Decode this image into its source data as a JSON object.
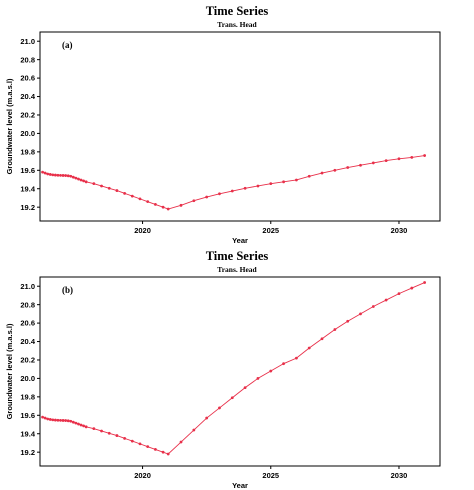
{
  "chart_data": [
    {
      "type": "line",
      "title": "Time Series",
      "subtitle": "Trans. Head",
      "panel_label": "(a)",
      "xlabel": "Year",
      "ylabel": "Groundwater level (m.a.s.l)",
      "xlim": [
        2016.0,
        2031.6
      ],
      "ylim": [
        19.05,
        21.1
      ],
      "xticks": [
        2020,
        2025,
        2030
      ],
      "yticks": [
        19.2,
        19.4,
        19.6,
        19.8,
        20.0,
        20.2,
        20.4,
        20.6,
        20.8,
        21.0
      ],
      "ytick_labels": [
        "19.2",
        "19.4",
        "19.6",
        "19.8",
        "20.0",
        "20.2",
        "20.4",
        "20.6",
        "20.8",
        "21.0"
      ],
      "line_color": "#e8304a",
      "series": [
        {
          "x": [
            2016.1,
            2016.2,
            2016.3,
            2016.4,
            2016.5,
            2016.6,
            2016.7,
            2016.8,
            2016.9,
            2017.0,
            2017.1,
            2017.2,
            2017.3,
            2017.4,
            2017.5,
            2017.6,
            2017.7,
            2017.8,
            2018.1,
            2018.4,
            2018.7,
            2019.0,
            2019.3,
            2019.6,
            2019.9,
            2020.2,
            2020.5,
            2020.8,
            2021.0,
            2021.5,
            2022.0,
            2022.5,
            2023.0,
            2023.5,
            2024.0,
            2024.5,
            2025.0,
            2025.5,
            2026.0,
            2026.5,
            2027.0,
            2027.5,
            2028.0,
            2028.5,
            2029.0,
            2029.5,
            2030.0,
            2030.5,
            2031.0
          ],
          "y": [
            19.58,
            19.57,
            19.56,
            19.555,
            19.55,
            19.548,
            19.546,
            19.545,
            19.544,
            19.543,
            19.54,
            19.535,
            19.525,
            19.515,
            19.505,
            19.495,
            19.485,
            19.475,
            19.455,
            19.43,
            19.405,
            19.38,
            19.35,
            19.32,
            19.29,
            19.26,
            19.23,
            19.2,
            19.18,
            19.22,
            19.27,
            19.31,
            19.345,
            19.375,
            19.405,
            19.43,
            19.455,
            19.475,
            19.495,
            19.535,
            19.57,
            19.6,
            19.63,
            19.655,
            19.68,
            19.705,
            19.725,
            19.74,
            19.76
          ]
        }
      ]
    },
    {
      "type": "line",
      "title": "Time Series",
      "subtitle": "Trans. Head",
      "panel_label": "(b)",
      "xlabel": "Year",
      "ylabel": "Groundwater level (m.a.s.l)",
      "xlim": [
        2016.0,
        2031.6
      ],
      "ylim": [
        19.05,
        21.1
      ],
      "xticks": [
        2020,
        2025,
        2030
      ],
      "yticks": [
        19.2,
        19.4,
        19.6,
        19.8,
        20.0,
        20.2,
        20.4,
        20.6,
        20.8,
        21.0
      ],
      "ytick_labels": [
        "19.2",
        "19.4",
        "19.6",
        "19.8",
        "20.0",
        "20.2",
        "20.4",
        "20.6",
        "20.8",
        "21.0"
      ],
      "line_color": "#e8304a",
      "series": [
        {
          "x": [
            2016.1,
            2016.2,
            2016.3,
            2016.4,
            2016.5,
            2016.6,
            2016.7,
            2016.8,
            2016.9,
            2017.0,
            2017.1,
            2017.2,
            2017.3,
            2017.4,
            2017.5,
            2017.6,
            2017.7,
            2017.8,
            2018.1,
            2018.4,
            2018.7,
            2019.0,
            2019.3,
            2019.6,
            2019.9,
            2020.2,
            2020.5,
            2020.8,
            2021.0,
            2021.5,
            2022.0,
            2022.5,
            2023.0,
            2023.5,
            2024.0,
            2024.5,
            2025.0,
            2025.5,
            2026.0,
            2026.5,
            2027.0,
            2027.5,
            2028.0,
            2028.5,
            2029.0,
            2029.5,
            2030.0,
            2030.5,
            2031.0
          ],
          "y": [
            19.58,
            19.57,
            19.56,
            19.555,
            19.55,
            19.548,
            19.546,
            19.545,
            19.544,
            19.543,
            19.54,
            19.535,
            19.525,
            19.515,
            19.505,
            19.495,
            19.485,
            19.475,
            19.455,
            19.43,
            19.405,
            19.38,
            19.35,
            19.32,
            19.29,
            19.26,
            19.23,
            19.2,
            19.18,
            19.31,
            19.44,
            19.57,
            19.68,
            19.79,
            19.9,
            20.0,
            20.08,
            20.16,
            20.22,
            20.33,
            20.43,
            20.53,
            20.62,
            20.7,
            20.78,
            20.85,
            20.92,
            20.98,
            21.04
          ]
        }
      ]
    }
  ]
}
